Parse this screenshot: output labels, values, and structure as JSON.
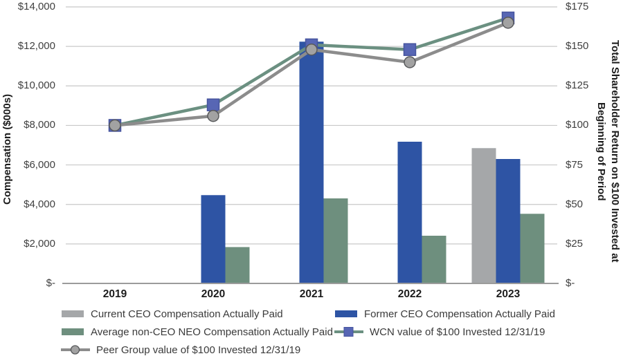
{
  "chart_data": {
    "type": "bar",
    "subtype": "combo-bar-line-dual-axis",
    "categories": [
      "2019",
      "2020",
      "2021",
      "2022",
      "2023"
    ],
    "bar_series": [
      {
        "name": "Current CEO Compensation Actually Paid",
        "axis": "left",
        "color": "#a5a7a9",
        "values": [
          null,
          null,
          null,
          null,
          6850
        ]
      },
      {
        "name": "Former CEO Compensation Actually Paid",
        "axis": "left",
        "color": "#2e54a4",
        "values": [
          null,
          4470,
          12240,
          7175,
          6300
        ]
      },
      {
        "name": "Average non-CEO NEO Compensation Actually Paid",
        "axis": "left",
        "color": "#6e8f7e",
        "values": [
          null,
          1840,
          4305,
          2415,
          3525
        ]
      }
    ],
    "line_series": [
      {
        "name": "WCN value of $100 Invested 12/31/19",
        "axis": "right",
        "line_color": "#6b9081",
        "marker": "square",
        "marker_color": "#5766b4",
        "marker_border": "#46549e",
        "values": [
          100,
          113,
          151,
          148,
          168
        ]
      },
      {
        "name": "Peer Group value of $100 Invested 12/31/19",
        "axis": "right",
        "line_color": "#8c8c8c",
        "marker": "circle",
        "marker_color": "#a2a2a2",
        "marker_border": "#58595b",
        "values": [
          100,
          106,
          148,
          140,
          165
        ]
      }
    ],
    "left_axis": {
      "title": "Compensation ($000s)",
      "min": 0,
      "max": 14000,
      "step": 2000,
      "ticks": [
        "$14,000",
        "$12,000",
        "$10,000",
        "$8,000",
        "$6,000",
        "$4,000",
        "$2,000",
        "$-"
      ]
    },
    "right_axis": {
      "title": "Total Shareholder Return on $100 Invested at Beginning of Period",
      "title_lines": [
        "Total Shareholder Return on $100 Invested at",
        "Beginning of Period"
      ],
      "min": 0,
      "max": 175,
      "step": 25,
      "ticks": [
        "$175",
        "$150",
        "$125",
        "$100",
        "$75",
        "$50",
        "$25",
        "$-"
      ]
    },
    "grid": true,
    "legend_position": "bottom",
    "legend": [
      {
        "col": 0,
        "row": 0,
        "type": "bar",
        "color": "#a5a7a9",
        "label": "Current CEO Compensation Actually Paid"
      },
      {
        "col": 1,
        "row": 0,
        "type": "bar",
        "color": "#2e54a4",
        "label": "Former CEO Compensation Actually Paid"
      },
      {
        "col": 0,
        "row": 1,
        "type": "bar",
        "color": "#6e8f7e",
        "label": "Average non-CEO NEO Compensation Actually Paid"
      },
      {
        "col": 1,
        "row": 1,
        "type": "line",
        "line_color": "#6b9081",
        "marker": "square",
        "marker_color": "#5766b4",
        "marker_border": "#46549e",
        "label": "WCN value of $100 Invested 12/31/19"
      },
      {
        "col": 0,
        "row": 2,
        "type": "line",
        "line_color": "#8c8c8c",
        "marker": "circle",
        "marker_color": "#a2a2a2",
        "marker_border": "#58595b",
        "label": "Peer Group value of $100 Invested 12/31/19"
      }
    ],
    "colors": {
      "gridline": "#c8c8c8",
      "axis_line": "#9b9b9b",
      "tick_text": "#3f3f3f",
      "bold_text": "#1c1c1c"
    }
  }
}
